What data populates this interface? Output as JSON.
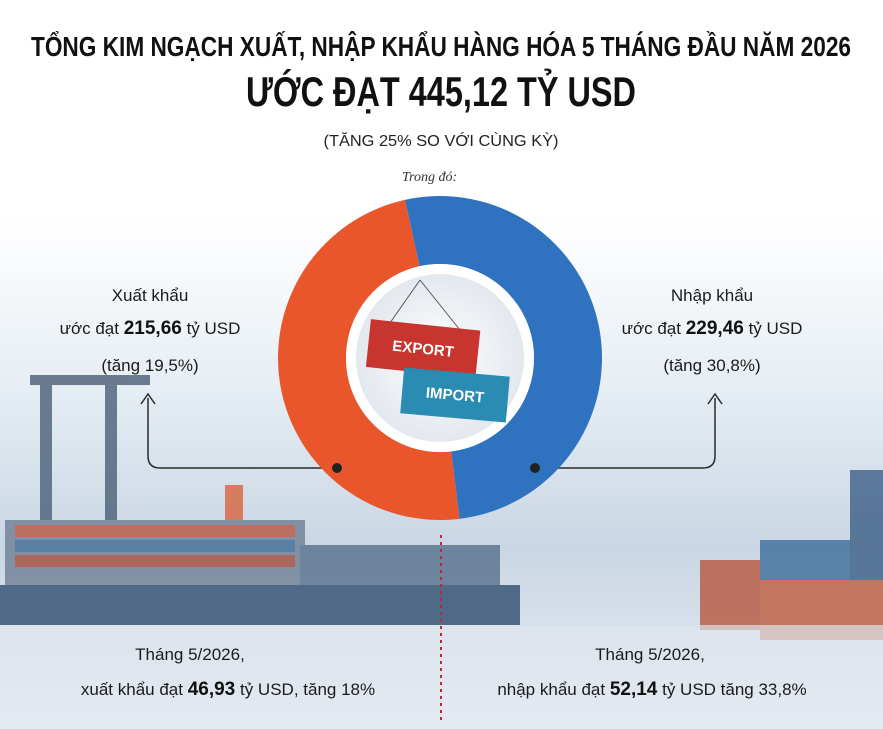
{
  "chart_data": {
    "type": "pie",
    "title": "TỔNG KIM NGẠCH XUẤT, NHẬP KHẨU HÀNG HÓA 5 THÁNG ĐẦU NĂM 2026",
    "subtitle": "ƯỚC ĐẠT 445,12 TỶ USD",
    "note": "(TĂNG 25% SO VỚI CÙNG KỲ)",
    "caption": "Trong đó:",
    "categories": [
      "Xuất khẩu",
      "Nhập khẩu"
    ],
    "values": [
      215.66,
      229.46
    ],
    "value_labels": [
      "215,66",
      "229,46"
    ],
    "colors": [
      "#e9562b",
      "#2e72c0"
    ],
    "donut": true,
    "annotations": [
      {
        "prefix": "ước đạt",
        "suffix": "tỷ USD",
        "growth": "(tăng 19,5%)"
      },
      {
        "prefix": "ước đạt",
        "suffix": "tỷ USD",
        "growth": "(tăng 30,8%)"
      }
    ],
    "monthly": [
      {
        "period": "Tháng 5/2026,",
        "prefix": "xuất khẩu đạt",
        "value": "46,93",
        "suffix": "tỷ USD, tăng 18%"
      },
      {
        "period": "Tháng 5/2026,",
        "prefix": "nhập khẩu đạt",
        "value": "52,14",
        "suffix": "tỷ USD tăng 33,8%"
      }
    ]
  },
  "illustration": {
    "labels": [
      "EXPORT",
      "IMPORT"
    ]
  }
}
